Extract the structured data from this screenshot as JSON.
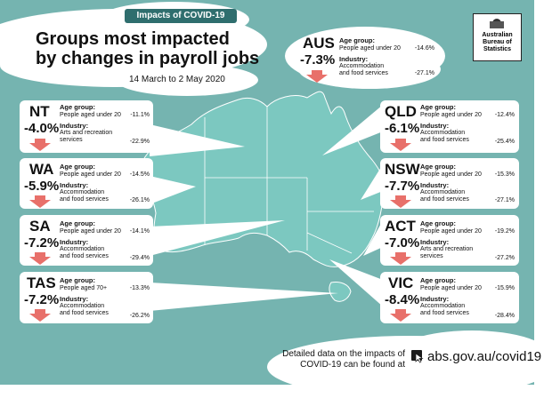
{
  "header": {
    "topic": "Impacts of COVID-19",
    "title_line1": "Groups most impacted",
    "title_line2": "by changes in payroll jobs",
    "date_range": "14 March to 2 May 2020"
  },
  "labels": {
    "age_group": "Age group:",
    "industry": "Industry:"
  },
  "logo": {
    "line1": "Australian",
    "line2": "Bureau of",
    "line3": "Statistics"
  },
  "national": {
    "code": "AUS",
    "change": "-7.3%",
    "age_label": "People aged under 20",
    "age_value": "-14.6%",
    "industry_line1": "Accommodation",
    "industry_line2": "and food services",
    "industry_value": "-27.1%"
  },
  "regions": {
    "nt": {
      "code": "NT",
      "change": "-4.0%",
      "age_label": "People aged under 20",
      "age_value": "-11.1%",
      "industry_line1": "Arts and recreation",
      "industry_line2": "services",
      "industry_value": "-22.9%"
    },
    "wa": {
      "code": "WA",
      "change": "-5.9%",
      "age_label": "People aged under 20",
      "age_value": "-14.5%",
      "industry_line1": "Accommodation",
      "industry_line2": "and food services",
      "industry_value": "-26.1%"
    },
    "sa": {
      "code": "SA",
      "change": "-7.2%",
      "age_label": "People aged under 20",
      "age_value": "-14.1%",
      "industry_line1": "Accommodation",
      "industry_line2": "and food services",
      "industry_value": "-29.4%"
    },
    "tas": {
      "code": "TAS",
      "change": "-7.2%",
      "age_label": "People aged 70+",
      "age_value": "-13.3%",
      "industry_line1": "Accommodation",
      "industry_line2": "and food services",
      "industry_value": "-26.2%"
    },
    "qld": {
      "code": "QLD",
      "change": "-6.1%",
      "age_label": "People aged under 20",
      "age_value": "-12.4%",
      "industry_line1": "Accommodation",
      "industry_line2": "and food services",
      "industry_value": "-25.4%"
    },
    "nsw": {
      "code": "NSW",
      "change": "-7.7%",
      "age_label": "People aged under 20",
      "age_value": "-15.3%",
      "industry_line1": "Accommodation",
      "industry_line2": "and food services",
      "industry_value": "-27.1%"
    },
    "act": {
      "code": "ACT",
      "change": "-7.0%",
      "age_label": "People aged under 20",
      "age_value": "-19.2%",
      "industry_line1": "Arts and recreation",
      "industry_line2": "services",
      "industry_value": "-27.2%"
    },
    "vic": {
      "code": "VIC",
      "change": "-8.4%",
      "age_label": "People aged under 20",
      "age_value": "-15.9%",
      "industry_line1": "Accommodation",
      "industry_line2": "and food services",
      "industry_value": "-28.4%"
    }
  },
  "footer": {
    "line1": "Detailed data on the impacts of",
    "line2": "COVID-19 can be found at",
    "link": "abs.gov.au/covid19"
  },
  "colors": {
    "background": "#75b4b0",
    "map_fill": "#7cc8c0",
    "topic_label": "#2f6e6e",
    "arrow": "#e8706a"
  }
}
